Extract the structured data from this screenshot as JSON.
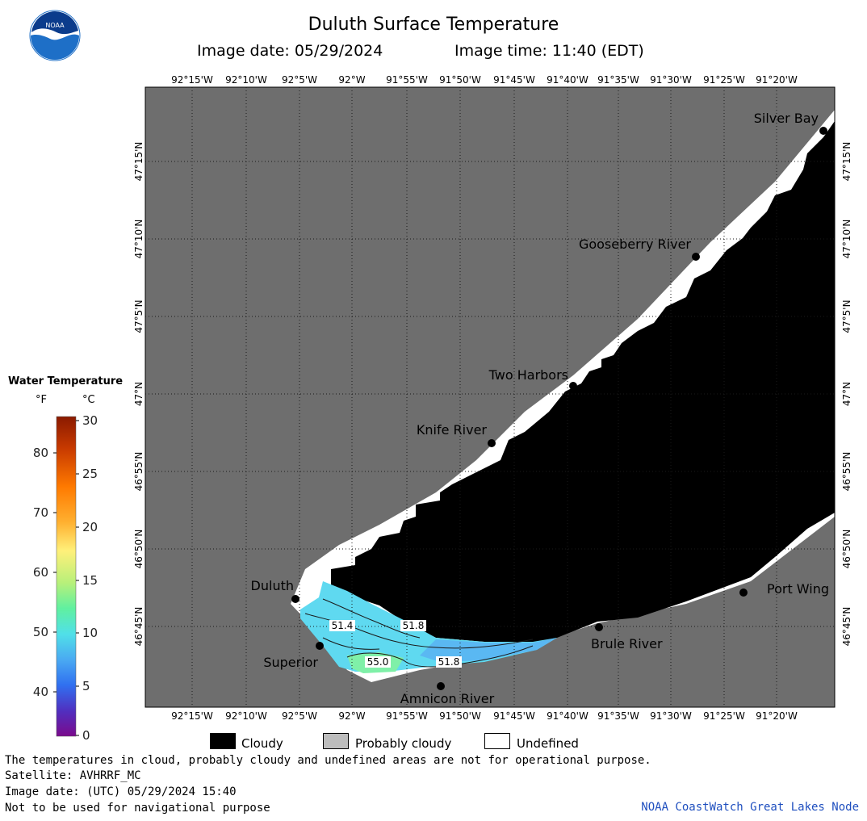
{
  "header": {
    "title": "Duluth Surface Temperature",
    "image_date": "Image date: 05/29/2024",
    "image_time": "Image time: 11:40 (EDT)"
  },
  "logo": {
    "text": "NOAA",
    "icon": "noaa-logo-icon"
  },
  "map": {
    "lon_labels": [
      "92°15'W",
      "92°10'W",
      "92°5'W",
      "92°W",
      "91°55'W",
      "91°50'W",
      "91°45'W",
      "91°40'W",
      "91°35'W",
      "91°30'W",
      "91°25'W",
      "91°20'W"
    ],
    "lat_labels": [
      "47°15'N",
      "47°10'N",
      "47°5'N",
      "47°N",
      "46°55'N",
      "46°50'N",
      "46°45'N"
    ],
    "places": [
      "Silver Bay",
      "Gooseberry River",
      "Two Harbors",
      "Knife River",
      "Duluth",
      "Superior",
      "Amnicon River",
      "Brule River",
      "Port Wing"
    ],
    "contour_labels": [
      "51.4",
      "51.8",
      "55.0",
      "51.8"
    ],
    "colors": {
      "background": "#6e6e6e",
      "cloud": "#000000",
      "undefined": "#ffffff",
      "water_cyan": "#5fd9f0",
      "water_blue": "#5ab8f2",
      "water_green": "#7ff0a8"
    }
  },
  "legend": {
    "title": "Water Temperature",
    "unit_f": "°F",
    "unit_c": "°C",
    "f_ticks": [
      "80",
      "70",
      "60",
      "50",
      "40"
    ],
    "c_ticks": [
      "30",
      "25",
      "20",
      "15",
      "10",
      "5",
      "0"
    ]
  },
  "cloud_legend": {
    "cloudy": "Cloudy",
    "probably_cloudy": "Probably cloudy",
    "undefined": "Undefined"
  },
  "footer": {
    "disclaimer": "The temperatures in cloud, probably cloudy and undefined areas are not for operational purpose.",
    "satellite": "Satellite: AVHRRF_MC",
    "utc_date": "Image date: (UTC) 05/29/2024  15:40",
    "navigation": "Not to be used for navigational purpose",
    "credit": "NOAA CoastWatch Great Lakes Node"
  }
}
